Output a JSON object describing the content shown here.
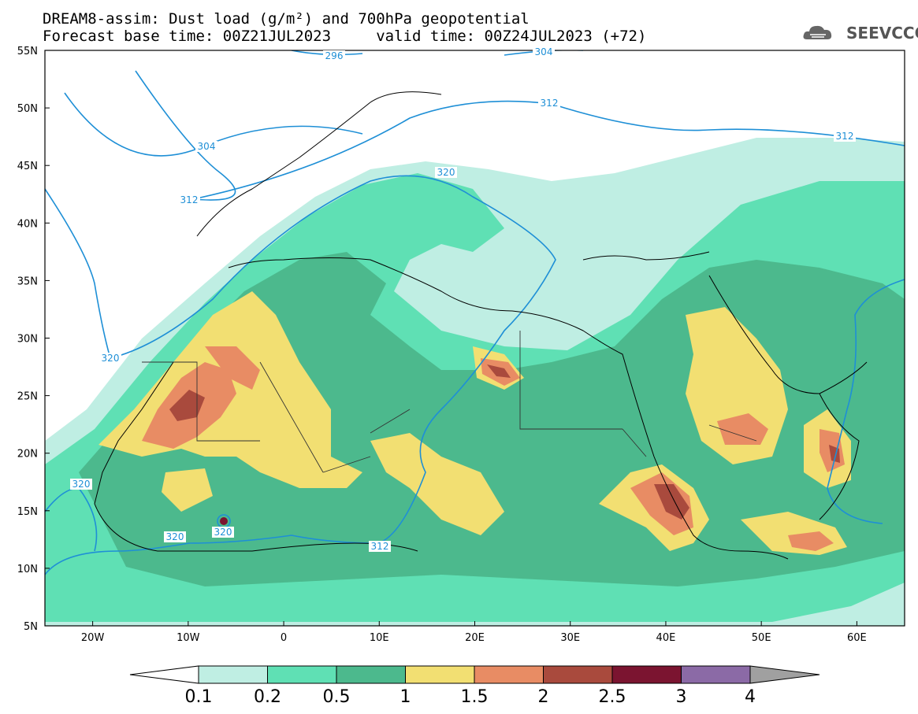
{
  "header": {
    "title_line1": "DREAM8-assim: Dust load (g/m²) and 700hPa geopotential",
    "title_line2": "Forecast base time: 00Z21JUL2023     valid time: 00Z24JUL2023 (+72)",
    "logo_text": "SEEVCCC"
  },
  "map_data": {
    "lat_ticks": [
      "55N",
      "50N",
      "45N",
      "40N",
      "35N",
      "30N",
      "25N",
      "20N",
      "15N",
      "10N",
      "5N"
    ],
    "lon_ticks": [
      "20W",
      "10W",
      "0",
      "10E",
      "20E",
      "30E",
      "40E",
      "50E",
      "60E"
    ],
    "geopotential_labels": [
      "296",
      "304",
      "304",
      "312",
      "312",
      "312",
      "320",
      "320",
      "320",
      "320",
      "320",
      "312"
    ],
    "dust_colors": {
      "c01": "#bfeee3",
      "c02": "#5fe0b4",
      "c05": "#4cb98d",
      "c1": "#f2df72",
      "c15": "#e88c64",
      "c2": "#a94a3d",
      "c25": "#7b1430",
      "c3": "#8b6aa6",
      "c4": "#a0a0a0"
    },
    "contour_color": "#1e8fd6"
  },
  "colorbar": {
    "labels": [
      "0.1",
      "0.2",
      "0.5",
      "1",
      "1.5",
      "2",
      "2.5",
      "3",
      "4"
    ]
  }
}
